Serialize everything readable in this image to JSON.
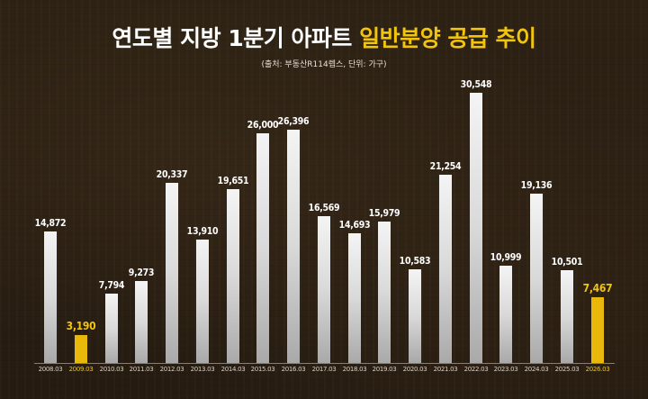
{
  "header": {
    "title_main": "연도별 지방 1분기 아파트 ",
    "title_highlight": "일반분양 공급 추이",
    "subtitle": "(출처: 부동산R114렙스, 단위: 가구)"
  },
  "colors": {
    "background": "#2a1f13",
    "bar": "#e0e0e0",
    "highlight": "#f1c40f",
    "title": "#ffffff"
  },
  "chart_data": {
    "type": "bar",
    "title": "연도별 지방 1분기 아파트 일반분양 공급 추이",
    "subtitle": "(출처: 부동산R114렙스, 단위: 가구)",
    "xlabel": "",
    "ylabel": "가구",
    "ylim": [
      0,
      30548
    ],
    "grid": false,
    "legend": null,
    "categories": [
      "2008.03",
      "2009.03",
      "2010.03",
      "2011.03",
      "2012.03",
      "2013.03",
      "2014.03",
      "2015.03",
      "2016.03",
      "2017.03",
      "2018.03",
      "2019.03",
      "2020.03",
      "2021.03",
      "2022.03",
      "2023.03",
      "2024.03",
      "2025.03",
      "2026.03"
    ],
    "values": [
      14872,
      3190,
      7794,
      9273,
      20337,
      13910,
      19651,
      26000,
      26396,
      16569,
      14693,
      15979,
      10583,
      21254,
      30548,
      10999,
      19136,
      10501,
      7467
    ],
    "value_labels": [
      "14,872",
      "3,190",
      "7,794",
      "9,273",
      "20,337",
      "13,910",
      "19,651",
      "26,000",
      "26,396",
      "16,569",
      "14,693",
      "15,979",
      "10,583",
      "21,254",
      "30,548",
      "10,999",
      "19,136",
      "10,501",
      "7,467"
    ],
    "highlighted": [
      "2009.03",
      "2026.03"
    ]
  }
}
